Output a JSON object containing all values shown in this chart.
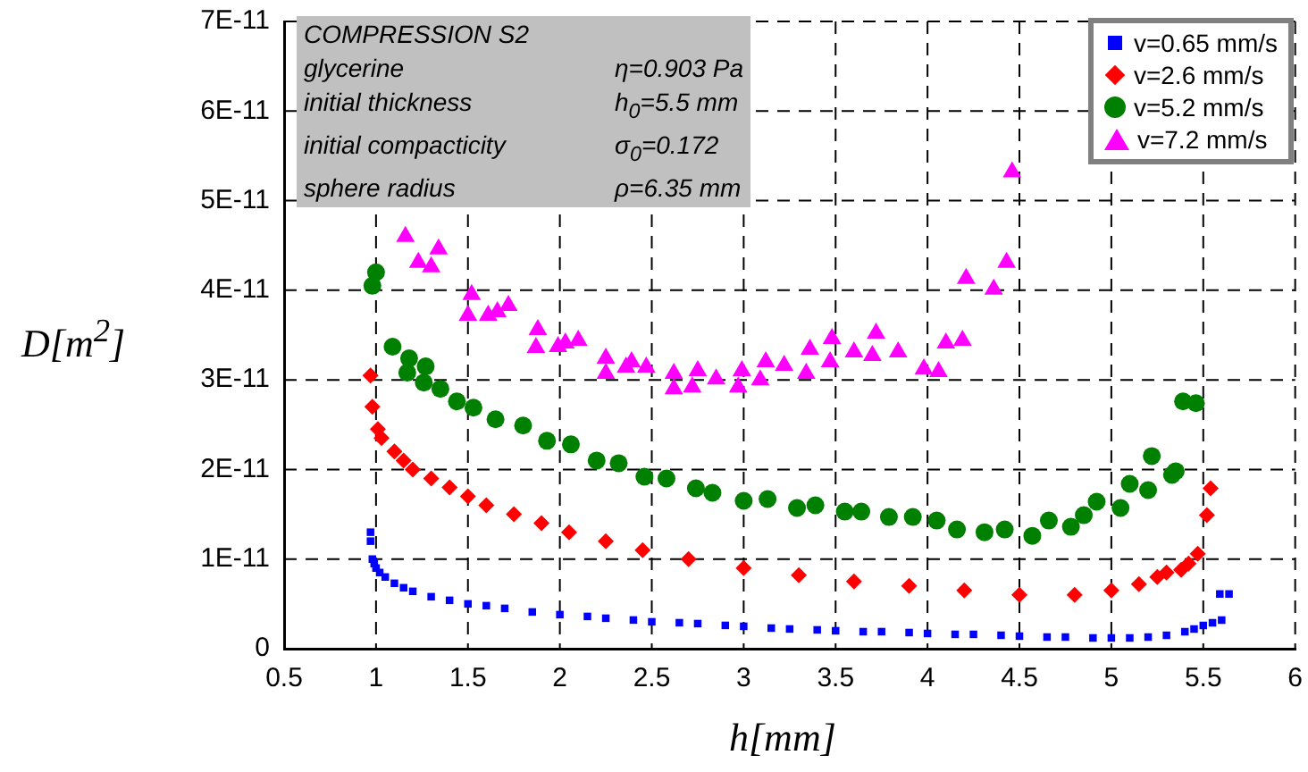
{
  "chart_data": {
    "type": "scatter",
    "xlabel": "h[mm]",
    "ylabel": "D[m$^{2}$]",
    "annotations": [
      "COMPRESSION  S2",
      "glycerine",
      "η=0.903 Pa",
      "initial thickness",
      "h$_{0}$=5.5 mm",
      "initial compacticity",
      "σ$_{0}$=0.172",
      "sphere radius",
      "ρ=6.35 mm"
    ],
    "xlim": [
      0.5,
      6
    ],
    "xticks": [
      0.5,
      1,
      1.5,
      2,
      2.5,
      3,
      3.5,
      4,
      4.5,
      5,
      5.5,
      6
    ],
    "ylim": [
      0,
      7e-11
    ],
    "yticks": [
      0,
      {
        "value": 1e-11,
        "label": "1E-11"
      },
      {
        "value": 2e-11,
        "label": "2E-11"
      },
      {
        "value": 3e-11,
        "label": "3E-11"
      },
      {
        "value": 4e-11,
        "label": "4E-11"
      },
      {
        "value": 5e-11,
        "label": "5E-11"
      },
      {
        "value": 6e-11,
        "label": "6E-11"
      },
      {
        "value": 7e-11,
        "label": "7E-11"
      }
    ],
    "grid": true,
    "legend": "top right",
    "series": [
      {
        "name": "v=0.65 mm/s",
        "color": "#0000ff",
        "marker": "square",
        "x": [
          0.97,
          0.97,
          0.98,
          0.99,
          1.0,
          1.02,
          1.05,
          1.1,
          1.15,
          1.2,
          1.3,
          1.4,
          1.5,
          1.6,
          1.7,
          1.85,
          2.0,
          2.15,
          2.25,
          2.4,
          2.5,
          2.65,
          2.75,
          2.9,
          3.0,
          3.15,
          3.25,
          3.4,
          3.5,
          3.65,
          3.75,
          3.9,
          4.0,
          4.15,
          4.25,
          4.4,
          4.5,
          4.65,
          4.75,
          4.9,
          5.0,
          5.1,
          5.2,
          5.3,
          5.4,
          5.45,
          5.5,
          5.55,
          5.6,
          5.59,
          5.64
        ],
        "values": [
          1.3e-11,
          1.2e-11,
          1e-11,
          9.5e-12,
          9e-12,
          8.5e-12,
          8e-12,
          7.3e-12,
          6.8e-12,
          6.4e-12,
          5.8e-12,
          5.4e-12,
          5e-12,
          4.8e-12,
          4.5e-12,
          4.1e-12,
          3.8e-12,
          3.6e-12,
          3.4e-12,
          3.2e-12,
          3e-12,
          2.9e-12,
          2.8e-12,
          2.6e-12,
          2.5e-12,
          2.3e-12,
          2.2e-12,
          2.1e-12,
          2e-12,
          1.9e-12,
          1.9e-12,
          1.8e-12,
          1.7e-12,
          1.6e-12,
          1.6e-12,
          1.5e-12,
          1.4e-12,
          1.3e-12,
          1.3e-12,
          1.2e-12,
          1.2e-12,
          1.2e-12,
          1.3e-12,
          1.5e-12,
          1.9e-12,
          2.2e-12,
          2.6e-12,
          2.9e-12,
          3.2e-12,
          6.1e-12,
          6.1e-12
        ]
      },
      {
        "name": "v=2.6 mm/s",
        "color": "#ff0000",
        "marker": "diamond",
        "x": [
          0.97,
          0.98,
          1.01,
          1.03,
          1.1,
          1.15,
          1.2,
          1.3,
          1.4,
          1.5,
          1.6,
          1.75,
          1.9,
          2.05,
          2.25,
          2.45,
          2.7,
          3.0,
          3.3,
          3.6,
          3.9,
          4.2,
          4.5,
          4.8,
          5.0,
          5.15,
          5.25,
          5.3,
          5.38,
          5.42,
          5.47,
          5.52,
          5.54
        ],
        "values": [
          3.05e-11,
          2.7e-11,
          2.45e-11,
          2.35e-11,
          2.2e-11,
          2.1e-11,
          2e-11,
          1.9e-11,
          1.8e-11,
          1.7e-11,
          1.6e-11,
          1.5e-11,
          1.4e-11,
          1.3e-11,
          1.2e-11,
          1.1e-11,
          1e-11,
          9e-12,
          8.2e-12,
          7.5e-12,
          7e-12,
          6.5e-12,
          6e-12,
          6e-12,
          6.5e-12,
          7.2e-12,
          8e-12,
          8.5e-12,
          8.8e-12,
          9.5e-12,
          1.06e-11,
          1.49e-11,
          1.79e-11
        ]
      },
      {
        "name": "v=5.2 mm/s",
        "color": "#008000",
        "marker": "circle",
        "x": [
          0.98,
          1.0,
          1.09,
          1.17,
          1.18,
          1.26,
          1.27,
          1.35,
          1.44,
          1.53,
          1.65,
          1.8,
          1.93,
          2.06,
          2.2,
          2.32,
          2.46,
          2.58,
          2.74,
          2.83,
          3.0,
          3.13,
          3.29,
          3.39,
          3.55,
          3.64,
          3.79,
          3.92,
          4.05,
          4.16,
          4.31,
          4.42,
          4.57,
          4.66,
          4.78,
          4.85,
          4.92,
          5.05,
          5.1,
          5.2,
          5.22,
          5.33,
          5.35,
          5.39,
          5.46
        ],
        "values": [
          4.05e-11,
          4.2e-11,
          3.37e-11,
          3.08e-11,
          3.24e-11,
          2.97e-11,
          3.15e-11,
          2.9e-11,
          2.76e-11,
          2.69e-11,
          2.56e-11,
          2.49e-11,
          2.32e-11,
          2.28e-11,
          2.1e-11,
          2.07e-11,
          1.92e-11,
          1.9e-11,
          1.79e-11,
          1.74e-11,
          1.65e-11,
          1.67e-11,
          1.57e-11,
          1.6e-11,
          1.53e-11,
          1.53e-11,
          1.47e-11,
          1.47e-11,
          1.43e-11,
          1.33e-11,
          1.3e-11,
          1.33e-11,
          1.26e-11,
          1.43e-11,
          1.36e-11,
          1.49e-11,
          1.64e-11,
          1.57e-11,
          1.84e-11,
          1.77e-11,
          2.15e-11,
          1.94e-11,
          1.98e-11,
          2.76e-11,
          2.74e-11
        ]
      },
      {
        "name": "v=7.2 mm/s",
        "color": "#ff00ff",
        "marker": "triangle",
        "x": [
          1.16,
          1.23,
          1.3,
          1.34,
          1.52,
          1.5,
          1.61,
          1.66,
          1.72,
          1.88,
          1.87,
          1.99,
          2.03,
          2.1,
          2.25,
          2.25,
          2.36,
          2.39,
          2.47,
          2.62,
          2.62,
          2.72,
          2.75,
          2.85,
          2.97,
          2.99,
          3.09,
          3.12,
          3.22,
          3.34,
          3.36,
          3.47,
          3.48,
          3.6,
          3.7,
          3.72,
          3.84,
          3.98,
          4.06,
          4.1,
          4.19,
          4.21,
          4.36,
          4.43,
          4.46
        ],
        "values": [
          4.6e-11,
          4.31e-11,
          4.26e-11,
          4.46e-11,
          3.95e-11,
          3.72e-11,
          3.72e-11,
          3.76e-11,
          3.83e-11,
          3.56e-11,
          3.36e-11,
          3.37e-11,
          3.41e-11,
          3.44e-11,
          3.24e-11,
          3.07e-11,
          3.14e-11,
          3.2e-11,
          3.14e-11,
          3.07e-11,
          2.9e-11,
          2.92e-11,
          3.1e-11,
          3.01e-11,
          2.92e-11,
          3.1e-11,
          3e-11,
          3.2e-11,
          3.16e-11,
          3.07e-11,
          3.34e-11,
          3.2e-11,
          3.46e-11,
          3.31e-11,
          3.27e-11,
          3.52e-11,
          3.31e-11,
          3.12e-11,
          3.09e-11,
          3.41e-11,
          3.44e-11,
          4.13e-11,
          4.01e-11,
          4.31e-11,
          5.32e-11
        ]
      }
    ]
  }
}
